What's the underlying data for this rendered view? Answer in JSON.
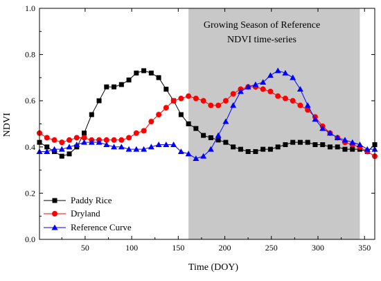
{
  "chart_data": {
    "type": "line",
    "xlabel": "Time (DOY)",
    "ylabel": "NDVI",
    "xlim": [
      1,
      361
    ],
    "ylim": [
      0.0,
      1.0
    ],
    "xticks": [
      50,
      100,
      150,
      200,
      250,
      300,
      350
    ],
    "xtick_labels": [
      "50",
      "100",
      "150",
      "200",
      "250",
      "300",
      "350"
    ],
    "yticks": [
      0.0,
      0.2,
      0.4,
      0.6,
      0.8,
      1.0
    ],
    "ytick_labels": [
      "0.0",
      "0.2",
      "0.4",
      "0.6",
      "0.8",
      "1.0"
    ],
    "grid": false,
    "legend_position": "bottom-left",
    "shaded_region": {
      "x_start": 161,
      "x_end": 345,
      "color": "#c8c8c8",
      "label_line1": "Growing Season of Reference",
      "label_line2": "NDVI time-series"
    },
    "x": [
      1,
      9,
      17,
      25,
      33,
      41,
      49,
      57,
      65,
      73,
      81,
      89,
      97,
      105,
      113,
      121,
      129,
      137,
      145,
      153,
      161,
      169,
      177,
      185,
      193,
      201,
      209,
      217,
      225,
      233,
      241,
      249,
      257,
      265,
      273,
      281,
      289,
      297,
      305,
      313,
      321,
      329,
      337,
      345,
      353,
      361
    ],
    "series": [
      {
        "name": "Paddy Rice",
        "color": "#000000",
        "marker": "square",
        "values": [
          0.42,
          0.4,
          0.38,
          0.36,
          0.37,
          0.4,
          0.46,
          0.54,
          0.6,
          0.66,
          0.66,
          0.67,
          0.69,
          0.72,
          0.73,
          0.72,
          0.7,
          0.65,
          0.6,
          0.54,
          0.5,
          0.48,
          0.45,
          0.44,
          0.43,
          0.42,
          0.4,
          0.39,
          0.38,
          0.38,
          0.39,
          0.39,
          0.4,
          0.41,
          0.42,
          0.42,
          0.42,
          0.41,
          0.41,
          0.4,
          0.4,
          0.39,
          0.39,
          0.39,
          0.38,
          0.41
        ]
      },
      {
        "name": "Dryland",
        "color": "#ff0000",
        "marker": "circle",
        "values": [
          0.46,
          0.44,
          0.43,
          0.42,
          0.43,
          0.44,
          0.44,
          0.43,
          0.43,
          0.43,
          0.43,
          0.43,
          0.44,
          0.46,
          0.47,
          0.51,
          0.54,
          0.57,
          0.6,
          0.61,
          0.62,
          0.61,
          0.6,
          0.58,
          0.58,
          0.6,
          0.63,
          0.65,
          0.66,
          0.66,
          0.65,
          0.64,
          0.62,
          0.61,
          0.6,
          0.58,
          0.56,
          0.53,
          0.49,
          0.46,
          0.44,
          0.42,
          0.41,
          0.4,
          0.38,
          0.36
        ]
      },
      {
        "name": "Reference Curve",
        "color": "#0000ff",
        "marker": "triangle",
        "values": [
          0.38,
          0.38,
          0.39,
          0.39,
          0.4,
          0.41,
          0.42,
          0.42,
          0.42,
          0.41,
          0.4,
          0.4,
          0.39,
          0.39,
          0.39,
          0.4,
          0.41,
          0.41,
          0.41,
          0.38,
          0.37,
          0.35,
          0.36,
          0.39,
          0.45,
          0.51,
          0.58,
          0.64,
          0.66,
          0.67,
          0.68,
          0.71,
          0.73,
          0.72,
          0.7,
          0.65,
          0.58,
          0.52,
          0.48,
          0.46,
          0.44,
          0.43,
          0.42,
          0.41,
          0.39,
          0.39
        ]
      }
    ]
  }
}
